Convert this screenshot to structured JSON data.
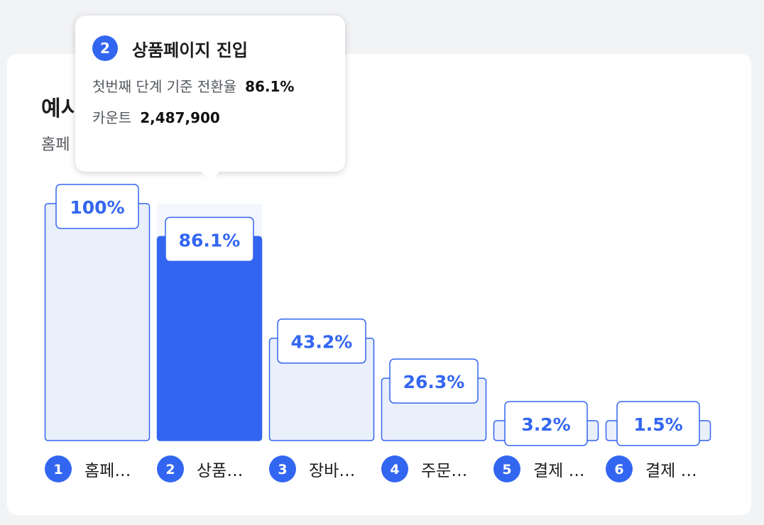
{
  "colors": {
    "accent": "#3366f0",
    "bar_fill": "#e9effb",
    "bar_hover_bg": "#f3f6fd",
    "text": "#1b1d1f",
    "muted": "#55595e"
  },
  "card": {
    "title": "예시",
    "subtitle": "홈페 용자 분석"
  },
  "tooltip": {
    "step": "2",
    "title": "상품페이지 진입",
    "rate_label": "첫번째 단계 기준 전환율",
    "rate_value": "86.1%",
    "count_label": "카운트",
    "count_value": "2,487,900"
  },
  "chart_data": {
    "type": "bar",
    "title": "",
    "categories": [
      "홈페…",
      "상품…",
      "장바…",
      "주문…",
      "결제 …",
      "결제 …"
    ],
    "category_numbers": [
      "1",
      "2",
      "3",
      "4",
      "5",
      "6"
    ],
    "values": [
      100,
      86.1,
      43.2,
      26.3,
      3.2,
      1.5
    ],
    "value_labels": [
      "100%",
      "86.1%",
      "43.2%",
      "26.3%",
      "3.2%",
      "1.5%"
    ],
    "ylim": [
      0,
      100
    ],
    "highlighted_index": 1,
    "grid": false,
    "legend": "none"
  }
}
